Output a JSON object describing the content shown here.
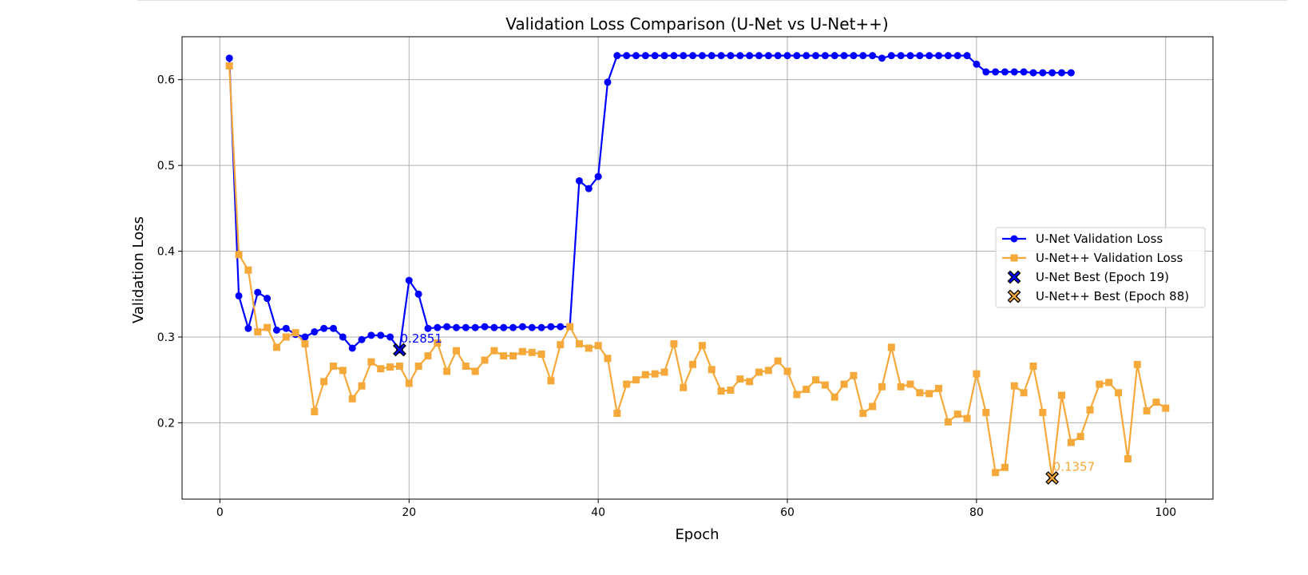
{
  "chart_data": {
    "type": "line",
    "title": "Validation Loss Comparison (U-Net vs U-Net++)",
    "xlabel": "Epoch",
    "ylabel": "Validation Loss",
    "xlim": [
      -4,
      105
    ],
    "ylim": [
      0.111,
      0.65
    ],
    "xticks": [
      0,
      20,
      40,
      60,
      80,
      100
    ],
    "yticks": [
      0.2,
      0.3,
      0.4,
      0.5,
      0.6
    ],
    "grid": true,
    "legend_position": "center-right",
    "series": [
      {
        "name": "U-Net Validation Loss",
        "color": "#0000ff",
        "marker": "circle",
        "x": [
          1,
          2,
          3,
          4,
          5,
          6,
          7,
          8,
          9,
          10,
          11,
          12,
          13,
          14,
          15,
          16,
          17,
          18,
          19,
          20,
          21,
          22,
          23,
          24,
          25,
          26,
          27,
          28,
          29,
          30,
          31,
          32,
          33,
          34,
          35,
          36,
          37,
          38,
          39,
          40,
          41,
          42,
          43,
          44,
          45,
          46,
          47,
          48,
          49,
          50,
          51,
          52,
          53,
          54,
          55,
          56,
          57,
          58,
          59,
          60,
          61,
          62,
          63,
          64,
          65,
          66,
          67,
          68,
          69,
          70,
          71,
          72,
          73,
          74,
          75,
          76,
          77,
          78,
          79,
          80,
          81,
          82,
          83,
          84,
          85,
          86,
          87,
          88,
          89,
          90
        ],
        "values": [
          0.625,
          0.348,
          0.31,
          0.352,
          0.345,
          0.308,
          0.31,
          0.303,
          0.3,
          0.306,
          0.31,
          0.31,
          0.3,
          0.287,
          0.297,
          0.302,
          0.302,
          0.3,
          0.2851,
          0.366,
          0.35,
          0.31,
          0.311,
          0.312,
          0.311,
          0.311,
          0.311,
          0.312,
          0.311,
          0.311,
          0.311,
          0.312,
          0.311,
          0.311,
          0.312,
          0.312,
          0.312,
          0.482,
          0.473,
          0.487,
          0.597,
          0.628,
          0.628,
          0.628,
          0.628,
          0.628,
          0.628,
          0.628,
          0.628,
          0.628,
          0.628,
          0.628,
          0.628,
          0.628,
          0.628,
          0.628,
          0.628,
          0.628,
          0.628,
          0.628,
          0.628,
          0.628,
          0.628,
          0.628,
          0.628,
          0.628,
          0.628,
          0.628,
          0.628,
          0.625,
          0.628,
          0.628,
          0.628,
          0.628,
          0.628,
          0.628,
          0.628,
          0.628,
          0.628,
          0.618,
          0.609,
          0.609,
          0.609,
          0.609,
          0.609,
          0.608,
          0.608,
          0.608,
          0.608,
          0.608
        ]
      },
      {
        "name": "U-Net++ Validation Loss",
        "color": "#f5a93a",
        "marker": "square",
        "x": [
          1,
          2,
          3,
          4,
          5,
          6,
          7,
          8,
          9,
          10,
          11,
          12,
          13,
          14,
          15,
          16,
          17,
          18,
          19,
          20,
          21,
          22,
          23,
          24,
          25,
          26,
          27,
          28,
          29,
          30,
          31,
          32,
          33,
          34,
          35,
          36,
          37,
          38,
          39,
          40,
          41,
          42,
          43,
          44,
          45,
          46,
          47,
          48,
          49,
          50,
          51,
          52,
          53,
          54,
          55,
          56,
          57,
          58,
          59,
          60,
          61,
          62,
          63,
          64,
          65,
          66,
          67,
          68,
          69,
          70,
          71,
          72,
          73,
          74,
          75,
          76,
          77,
          78,
          79,
          80,
          81,
          82,
          83,
          84,
          85,
          86,
          87,
          88,
          89,
          90,
          91,
          92,
          93,
          94,
          95,
          96,
          97,
          98,
          99,
          100
        ],
        "values": [
          0.616,
          0.396,
          0.378,
          0.306,
          0.311,
          0.288,
          0.3,
          0.305,
          0.292,
          0.213,
          0.248,
          0.266,
          0.261,
          0.228,
          0.243,
          0.271,
          0.263,
          0.265,
          0.266,
          0.246,
          0.266,
          0.278,
          0.293,
          0.26,
          0.284,
          0.266,
          0.26,
          0.273,
          0.284,
          0.278,
          0.278,
          0.283,
          0.282,
          0.28,
          0.249,
          0.291,
          0.312,
          0.292,
          0.287,
          0.29,
          0.275,
          0.211,
          0.245,
          0.25,
          0.256,
          0.257,
          0.259,
          0.292,
          0.241,
          0.268,
          0.29,
          0.262,
          0.237,
          0.238,
          0.251,
          0.248,
          0.259,
          0.261,
          0.272,
          0.26,
          0.233,
          0.239,
          0.25,
          0.244,
          0.23,
          0.245,
          0.255,
          0.211,
          0.219,
          0.242,
          0.288,
          0.242,
          0.245,
          0.235,
          0.234,
          0.24,
          0.201,
          0.21,
          0.205,
          0.257,
          0.212,
          0.142,
          0.148,
          0.243,
          0.235,
          0.266,
          0.212,
          0.1357,
          0.232,
          0.177,
          0.184,
          0.215,
          0.245,
          0.247,
          0.235,
          0.158,
          0.268,
          0.214,
          0.224,
          0.217
        ]
      }
    ],
    "best_markers": [
      {
        "name": "U-Net Best (Epoch 19)",
        "x": 19,
        "y": 0.2851,
        "label": "0.2851",
        "color": "#0000ff"
      },
      {
        "name": "U-Net++ Best (Epoch 88)",
        "x": 88,
        "y": 0.1357,
        "label": "0.1357",
        "color": "#f5a93a"
      }
    ]
  }
}
